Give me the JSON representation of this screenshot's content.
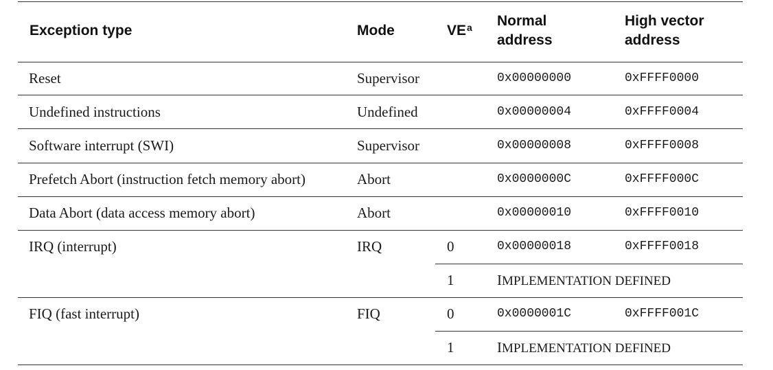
{
  "header": {
    "exception_type": "Exception type",
    "mode": "Mode",
    "ve": "VE",
    "ve_note": "a",
    "normal_line1": "Normal",
    "normal_line2": "address",
    "high_line1": "High vector",
    "high_line2": "address"
  },
  "rows": [
    {
      "exception": "Reset",
      "mode": "Supervisor",
      "ve": "",
      "normal": "0x00000000",
      "high": "0xFFFF0000"
    },
    {
      "exception": "Undefined instructions",
      "mode": "Undefined",
      "ve": "",
      "normal": "0x00000004",
      "high": "0xFFFF0004"
    },
    {
      "exception": "Software interrupt (SWI)",
      "mode": "Supervisor",
      "ve": "",
      "normal": "0x00000008",
      "high": "0xFFFF0008"
    },
    {
      "exception": "Prefetch Abort (instruction fetch memory abort)",
      "mode": "Abort",
      "ve": "",
      "normal": "0x0000000C",
      "high": "0xFFFF000C"
    },
    {
      "exception": "Data Abort (data access memory abort)",
      "mode": "Abort",
      "ve": "",
      "normal": "0x00000010",
      "high": "0xFFFF0010"
    },
    {
      "exception": "IRQ (interrupt)",
      "mode": "IRQ",
      "ve": "0",
      "normal": "0x00000018",
      "high": "0xFFFF0018"
    },
    {
      "exception": "",
      "mode": "",
      "ve": "1",
      "impl_first": "I",
      "impl_rest": "MPLEMENTATION DEFINED"
    },
    {
      "exception": "FIQ (fast interrupt)",
      "mode": "FIQ",
      "ve": "0",
      "normal": "0x0000001C",
      "high": "0xFFFF001C"
    },
    {
      "exception": "",
      "mode": "",
      "ve": "1",
      "impl_first": "I",
      "impl_rest": "MPLEMENTATION DEFINED"
    }
  ]
}
